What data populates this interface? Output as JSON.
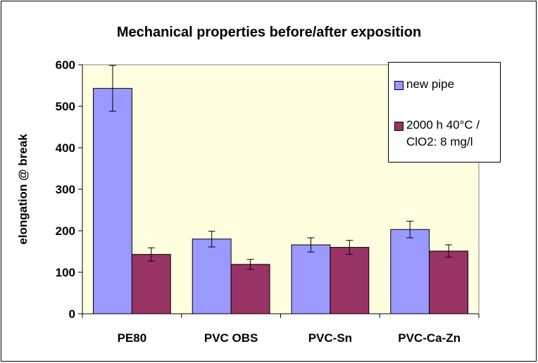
{
  "chart_data": {
    "type": "bar",
    "title": "Mechanical properties before/after exposition",
    "y_label": "elongation @ break",
    "categories": [
      "PE80",
      "PVC OBS",
      "PVC-Sn",
      "PVC-Ca-Zn"
    ],
    "series": [
      {
        "name": "new pipe",
        "color": "#9999FF",
        "values": [
          543,
          180,
          166,
          203
        ],
        "errors": [
          55,
          19,
          17,
          20
        ]
      },
      {
        "name": "2000 h 40°C / ClO2: 8 mg/l",
        "color": "#993366",
        "values": [
          143,
          119,
          160,
          151
        ],
        "errors": [
          16,
          12,
          17,
          15
        ]
      }
    ],
    "ylim": [
      0,
      600
    ],
    "yticks": [
      0,
      100,
      200,
      300,
      400,
      500,
      600
    ],
    "grid": false,
    "legend": "top-right"
  }
}
